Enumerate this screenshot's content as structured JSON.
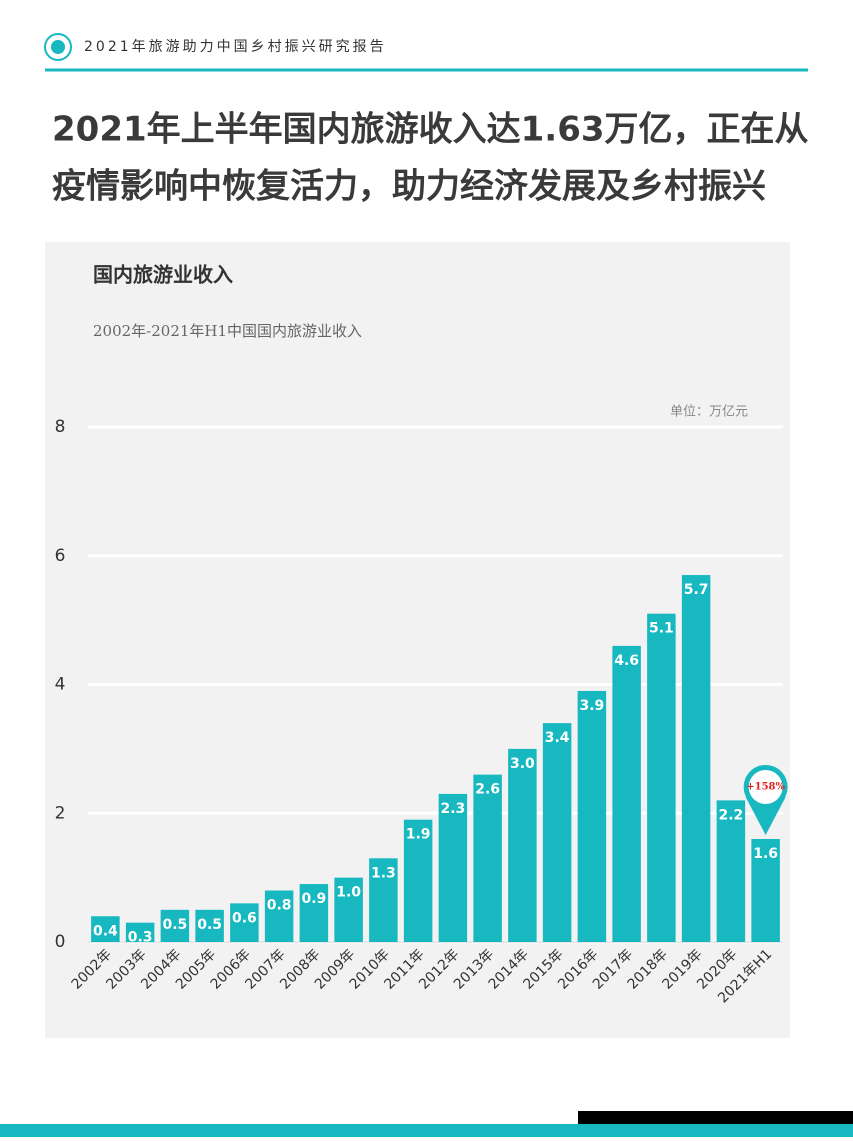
{
  "header": {
    "title": "2021年旅游助力中国乡村振兴研究报告"
  },
  "headline": [
    "2021年上半年国内旅游收入达1.63万亿，正在从",
    "疫情影响中恢复活力，助力经济发展及乡村振兴"
  ],
  "chart_data": {
    "type": "bar",
    "title": "国内旅游业收入",
    "subtitle": "2002年-2021年H1中国国内旅游业收入",
    "unit": "单位：万亿元",
    "categories": [
      "2002年",
      "2003年",
      "2004年",
      "2005年",
      "2006年",
      "2007年",
      "2008年",
      "2009年",
      "2010年",
      "2011年",
      "2012年",
      "2013年",
      "2014年",
      "2015年",
      "2016年",
      "2017年",
      "2018年",
      "2019年",
      "2020年",
      "2021年H1"
    ],
    "values": [
      0.4,
      0.3,
      0.5,
      0.5,
      0.6,
      0.8,
      0.9,
      1.0,
      1.3,
      1.9,
      2.3,
      2.6,
      3.0,
      3.4,
      3.9,
      4.6,
      5.1,
      5.7,
      2.2,
      1.6
    ],
    "value_labels": [
      "0.4",
      "0.3",
      "0.5",
      "0.5",
      "0.6",
      "0.8",
      "0.9",
      "1.0",
      "1.3",
      "1.9",
      "2.3",
      "2.6",
      "3.0",
      "3.4",
      "3.9",
      "4.6",
      "5.1",
      "5.7",
      "2.2",
      "1.6"
    ],
    "color": "#17b8c0",
    "ylim": [
      0,
      8
    ],
    "yticks": [
      0,
      2,
      4,
      6,
      8
    ],
    "grid": true,
    "annotation": "+158%"
  }
}
